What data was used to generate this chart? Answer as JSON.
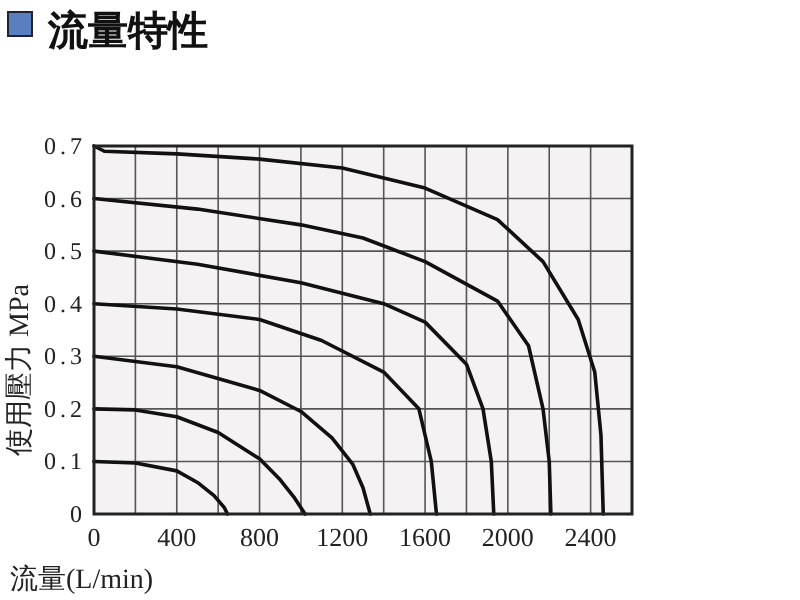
{
  "chart_data": {
    "type": "line",
    "title": "流量特性",
    "xlabel": "流量(L/min)",
    "ylabel": "使用壓力 MPa",
    "xlim": [
      0,
      2600
    ],
    "xticks": [
      0,
      400,
      800,
      1200,
      1600,
      2000,
      2400
    ],
    "ylim": [
      0,
      0.7
    ],
    "yticks": [
      0,
      0.1,
      0.2,
      0.3,
      0.4,
      0.5,
      0.6,
      0.7
    ],
    "grid": true,
    "marker": "none",
    "line_style": "solid",
    "series": [
      {
        "color": "#111111",
        "x": [
          0,
          200,
          400,
          500,
          580,
          630,
          645
        ],
        "values": [
          0.1,
          0.097,
          0.082,
          0.06,
          0.035,
          0.012,
          0
        ]
      },
      {
        "color": "#111111",
        "x": [
          0,
          200,
          400,
          600,
          800,
          900,
          970,
          1020
        ],
        "values": [
          0.2,
          0.198,
          0.185,
          0.155,
          0.105,
          0.065,
          0.03,
          0
        ]
      },
      {
        "color": "#111111",
        "x": [
          0,
          400,
          800,
          1000,
          1150,
          1250,
          1300,
          1335
        ],
        "values": [
          0.3,
          0.28,
          0.235,
          0.195,
          0.145,
          0.095,
          0.05,
          0
        ]
      },
      {
        "color": "#111111",
        "x": [
          0,
          400,
          800,
          1100,
          1400,
          1570,
          1630,
          1655
        ],
        "values": [
          0.4,
          0.39,
          0.37,
          0.33,
          0.27,
          0.2,
          0.1,
          0
        ]
      },
      {
        "color": "#111111",
        "x": [
          0,
          500,
          1000,
          1400,
          1600,
          1800,
          1880,
          1920,
          1932
        ],
        "values": [
          0.5,
          0.475,
          0.44,
          0.4,
          0.365,
          0.285,
          0.2,
          0.1,
          0
        ]
      },
      {
        "color": "#111111",
        "x": [
          0,
          500,
          1000,
          1300,
          1600,
          1950,
          2100,
          2170,
          2200,
          2208
        ],
        "values": [
          0.6,
          0.58,
          0.55,
          0.525,
          0.48,
          0.405,
          0.32,
          0.2,
          0.1,
          0
        ]
      },
      {
        "color": "#111111",
        "x": [
          0,
          50,
          400,
          800,
          1200,
          1600,
          1950,
          2170,
          2340,
          2420,
          2450,
          2461
        ],
        "values": [
          0.7,
          0.69,
          0.685,
          0.675,
          0.658,
          0.62,
          0.56,
          0.48,
          0.37,
          0.27,
          0.15,
          0
        ]
      }
    ]
  }
}
